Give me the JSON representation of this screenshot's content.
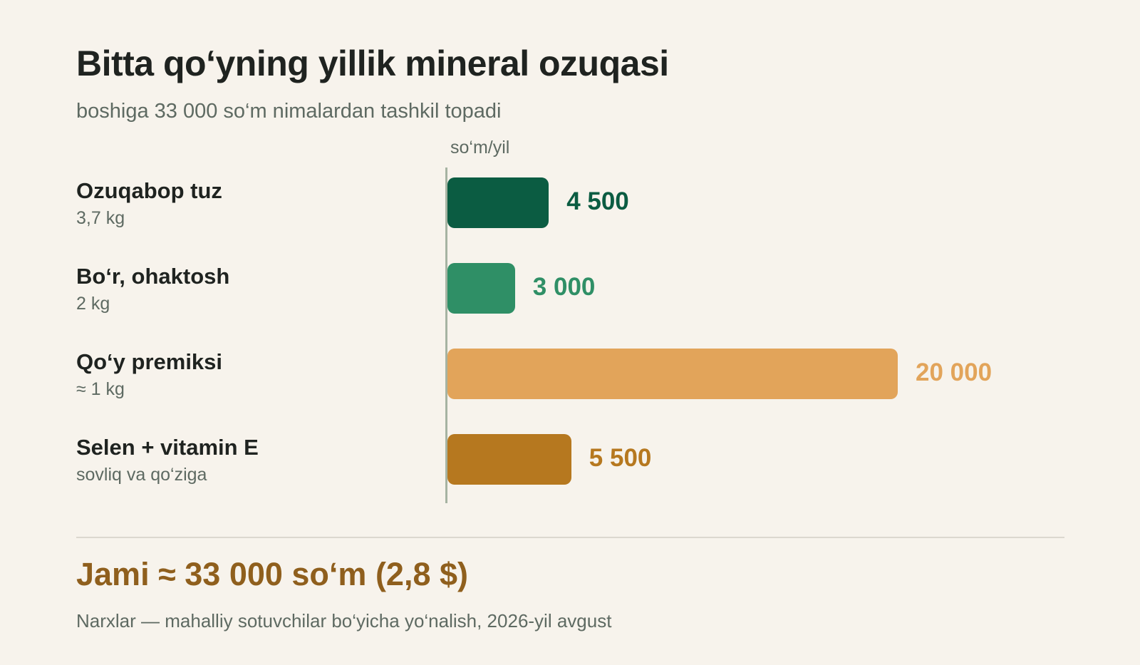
{
  "title": "Bitta qo‘yning yillik mineral ozuqasi",
  "subtitle": "boshiga 33 000 so‘m nimalardan tashkil topadi",
  "total": "Jami ≈ 33 000 so‘m (2,8 $)",
  "note": "Narxlar — mahalliy sotuvchilar bo‘yicha yo‘nalish, 2026-yil avgust",
  "chart_data": {
    "type": "bar",
    "orientation": "horizontal",
    "unit_label": "so‘m/yil",
    "categories": [
      "Ozuqabop tuz",
      "Bo‘r, ohaktosh",
      "Qo‘y premiksi",
      "Selen + vitamin E"
    ],
    "sublabels": [
      "3,7 kg",
      "2 kg",
      "≈ 1 kg",
      "sovliq va qo‘ziga"
    ],
    "values": [
      4500,
      3000,
      20000,
      5500
    ],
    "value_labels": [
      "4 500",
      "3 000",
      "20 000",
      "5 500"
    ],
    "bar_colors": [
      "#0b5c42",
      "#2f8f66",
      "#e2a45a",
      "#b6781f"
    ],
    "xlim": [
      0,
      20000
    ]
  }
}
